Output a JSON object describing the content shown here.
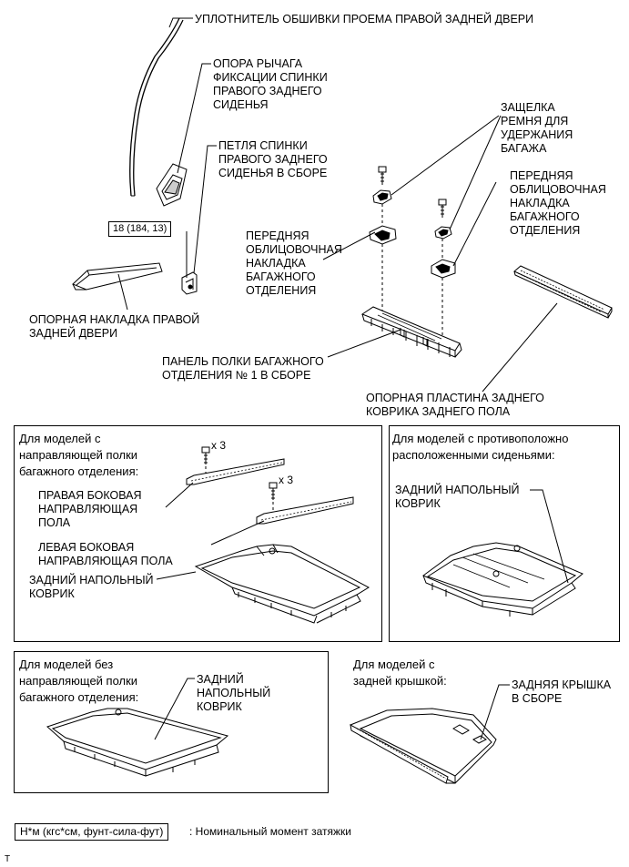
{
  "labels": {
    "door_opening_seal": "УПЛОТНИТЕЛЬ ОБШИВКИ ПРОЕМА ПРАВОЙ ЗАДНЕЙ ДВЕРИ",
    "lock_lever_support": "ОПОРА РЫЧАГА\nФИКСАЦИИ СПИНКИ\nПРАВОГО ЗАДНЕГО\nСИДЕНЬЯ",
    "seatback_hinge": "ПЕТЛЯ СПИНКИ\nПРАВОГО ЗАДНЕГО\nСИДЕНЬЯ В СБОРЕ",
    "luggage_belt_latch": "ЗАЩЕЛКА\nРЕМНЯ ДЛЯ\nУДЕРЖАНИЯ\nБАГАЖА",
    "front_trim_right": "ПЕРЕДНЯЯ\nОБЛИЦОВОЧНАЯ\nНАКЛАДКА\nБАГАЖНОГО\nОТДЕЛЕНИЯ",
    "front_trim_left": "ПЕРЕДНЯЯ\nОБЛИЦОВОЧНАЯ\nНАКЛАДКА\nБАГАЖНОГО\nОТДЕЛЕНИЯ",
    "rear_door_scuff": "ОПОРНАЯ НАКЛАДКА ПРАВОЙ\nЗАДНЕЙ ДВЕРИ",
    "shelf_panel": "ПАНЕЛЬ ПОЛКИ БАГАЖНОГО\nОТДЕЛЕНИЯ № 1 В СБОРЕ",
    "mat_support_plate": "ОПОРНАЯ ПЛАСТИНА ЗАДНЕГО\nКОВРИКА ЗАДНЕГО ПОЛА"
  },
  "torque": "18 (184, 13)",
  "panel_guide": {
    "heading": "Для моделей с\nнаправляющей полки\nбагажного отделения:",
    "mult_top": "x 3",
    "mult_bottom": "x 3",
    "right_guide": "ПРАВАЯ БОКОВАЯ\nНАПРАВЛЯЮЩАЯ\nПОЛА",
    "left_guide": "ЛЕВАЯ БОКОВАЯ\nНАПРАВЛЯЮЩАЯ ПОЛА",
    "rear_mat": "ЗАДНИЙ НАПОЛЬНЫЙ\nКОВРИК"
  },
  "panel_opposite": {
    "heading": "Для моделей с противоположно\nрасположенными сиденьями:",
    "rear_mat": "ЗАДНИЙ НАПОЛЬНЫЙ\nКОВРИК"
  },
  "panel_no_guide": {
    "heading": "Для моделей без\nнаправляющей полки\nбагажного отделения:",
    "rear_mat": "ЗАДНИЙ\nНАПОЛЬНЫЙ\nКОВРИК"
  },
  "panel_cover": {
    "heading": "Для моделей с\nзадней крышкой:",
    "tonneau": "ЗАДНЯЯ КРЫШКА\nВ СБОРЕ"
  },
  "legend": {
    "unit": "Н*м (кгс*см, фунт-сила-фут)",
    "meaning": ": Номинальный момент затяжки"
  },
  "footer_mark": "T"
}
